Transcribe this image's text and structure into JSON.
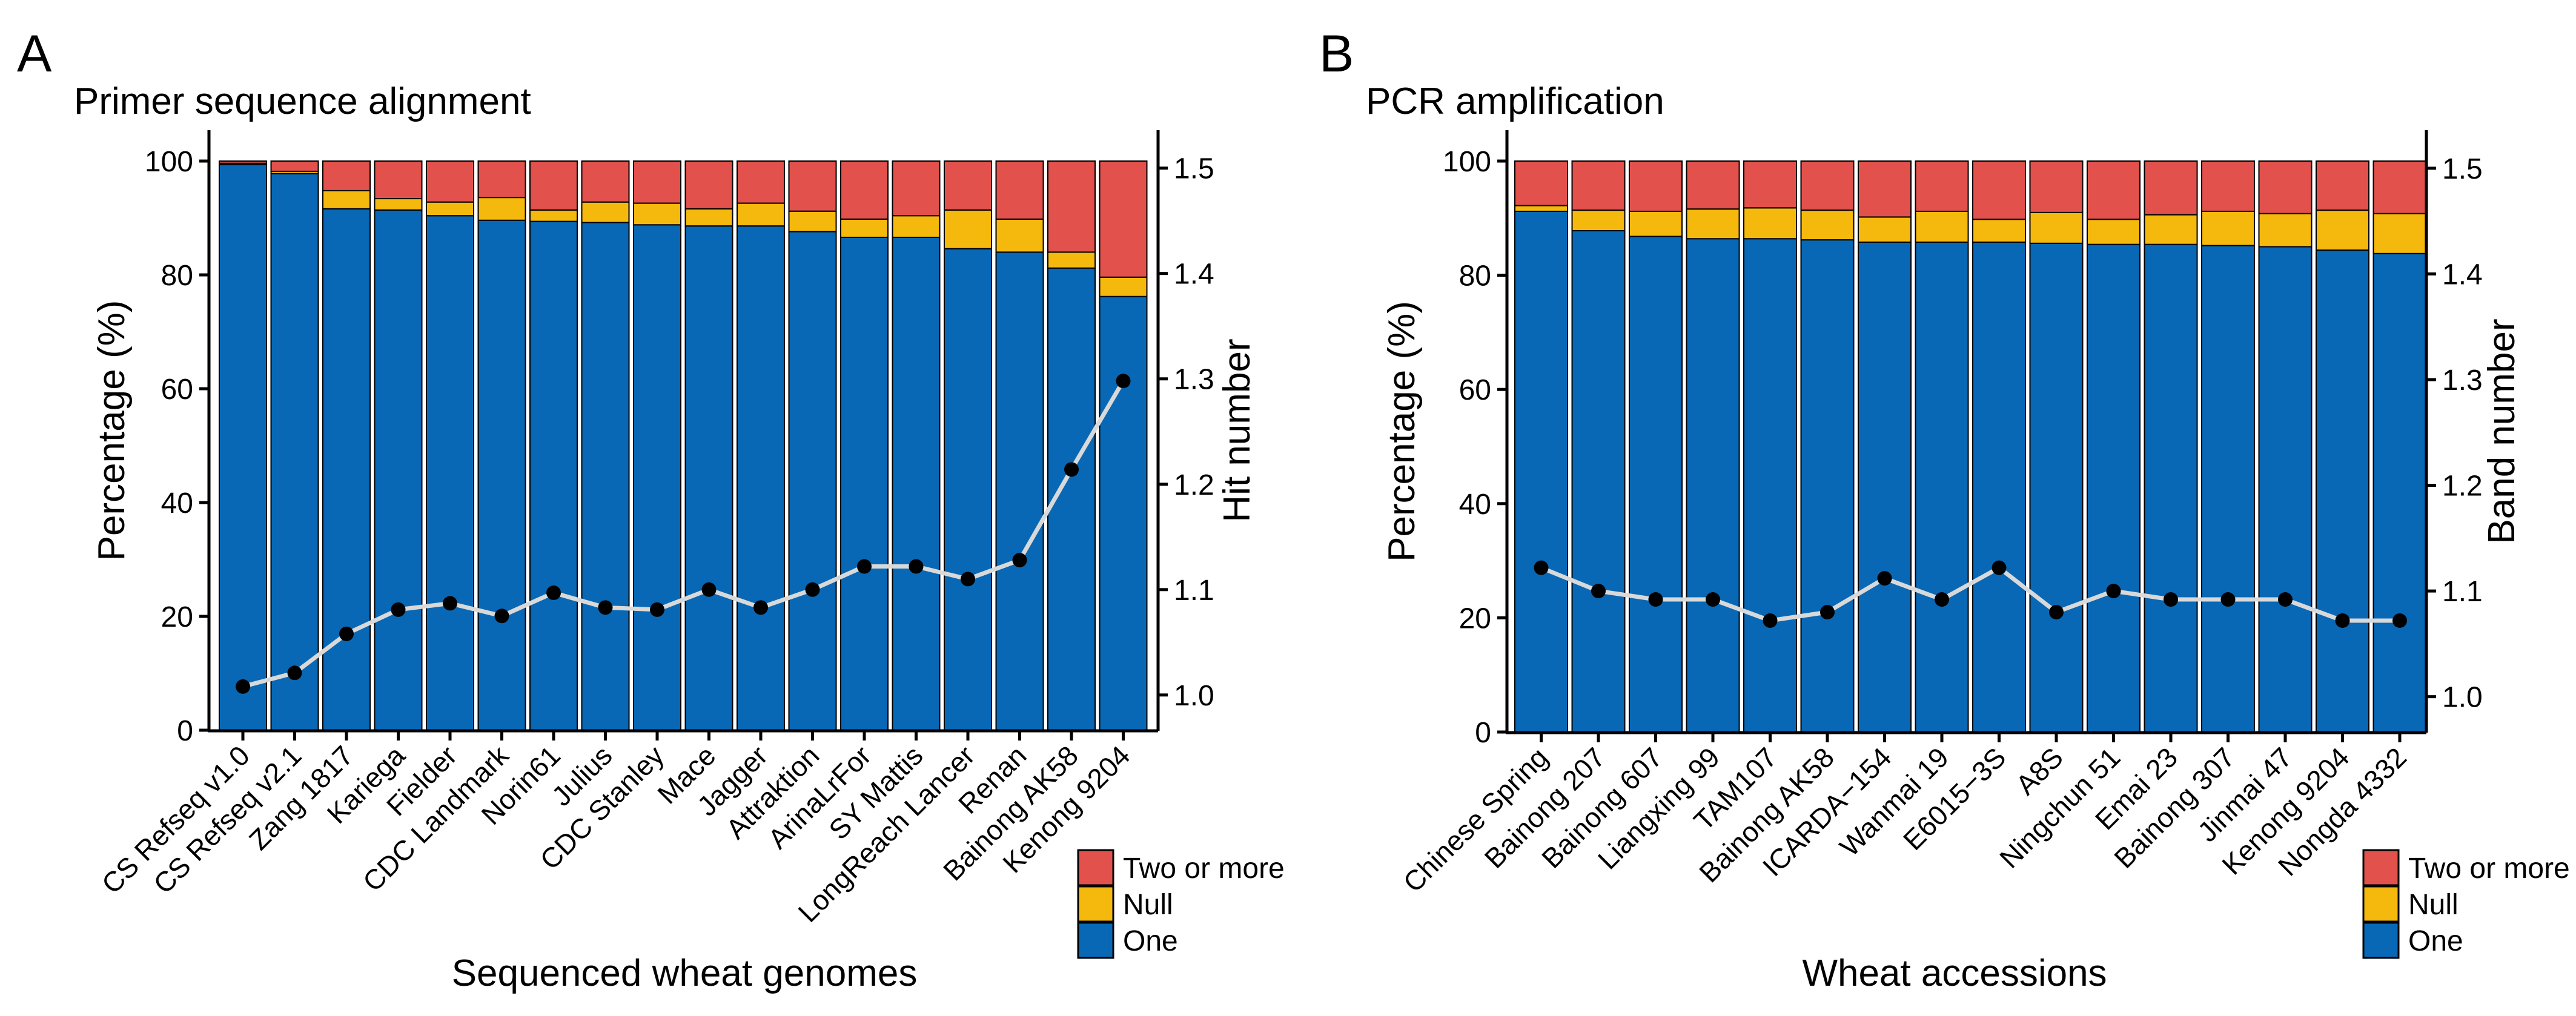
{
  "colors": {
    "one": "#0868b5",
    "null": "#f5b80c",
    "two": "#e2514b",
    "line": "#d9d9d9",
    "dot": "#000000"
  },
  "chart_data": [
    {
      "type": "bar",
      "panel": "A",
      "title": "Primer sequence alignment",
      "xlabel": "Sequenced wheat genomes",
      "ylabel": "Percentage (%)",
      "y2label": "Hit number",
      "ylim": [
        0,
        100
      ],
      "y2lim": [
        0.966,
        1.536
      ],
      "yticks": [
        "0",
        "20",
        "40",
        "60",
        "80",
        "100"
      ],
      "y2ticks": [
        "1.0",
        "1.1",
        "1.2",
        "1.3",
        "1.4",
        "1.5"
      ],
      "categories": [
        "CS Refseq v1.0",
        "CS Refseq v2.1",
        "Zang 1817",
        "Kariega",
        "Fielder",
        "CDC Landmark",
        "Norin61",
        "Julius",
        "CDC Stanley",
        "Mace",
        "Jagger",
        "Attraktion",
        "ArinaLrFor",
        "SY Mattis",
        "LongReach Lancer",
        "Renan",
        "Bainong AK58",
        "Kenong 9204"
      ],
      "series": [
        {
          "name": "One",
          "values": [
            99.4,
            97.8,
            91.6,
            91.4,
            90.4,
            89.6,
            89.4,
            89.2,
            88.8,
            88.6,
            88.6,
            87.6,
            86.6,
            86.6,
            84.6,
            84.0,
            81.2,
            76.2
          ]
        },
        {
          "name": "Null",
          "values": [
            0.2,
            0.4,
            3.2,
            2.0,
            2.4,
            4.0,
            2.0,
            3.6,
            3.8,
            3.0,
            4.0,
            3.6,
            3.2,
            3.8,
            6.8,
            5.8,
            2.8,
            3.4
          ]
        },
        {
          "name": "Two or more",
          "values": [
            0.4,
            1.8,
            5.2,
            6.6,
            7.2,
            6.4,
            8.6,
            7.2,
            7.4,
            8.4,
            7.4,
            8.8,
            10.2,
            9.6,
            8.6,
            10.2,
            16.0,
            20.4
          ]
        }
      ],
      "line": {
        "name": "Hit number",
        "values": [
          1.008,
          1.021,
          1.058,
          1.081,
          1.087,
          1.075,
          1.097,
          1.083,
          1.081,
          1.1,
          1.083,
          1.1,
          1.122,
          1.122,
          1.11,
          1.128,
          1.214,
          1.298
        ]
      },
      "legend": {
        "placement": "bottom-right",
        "entries": [
          "Two or more",
          "Null",
          "One"
        ]
      }
    },
    {
      "type": "bar",
      "panel": "B",
      "title": "PCR amplification",
      "xlabel": "Wheat accessions",
      "ylabel": "Percentage (%)",
      "y2label": "Band number",
      "ylim": [
        0,
        100
      ],
      "y2lim": [
        0.966,
        1.536
      ],
      "yticks": [
        "0",
        "20",
        "40",
        "60",
        "80",
        "100"
      ],
      "y2ticks": [
        "1.0",
        "1.1",
        "1.2",
        "1.3",
        "1.4",
        "1.5"
      ],
      "categories": [
        "Chinese Spring",
        "Bainong 207",
        "Bainong 607",
        "Liangxing 99",
        "TAM107",
        "Bainong AK58",
        "ICARDA−154",
        "Wanmai 19",
        "E6015−3S",
        "A8S",
        "Ningchun 51",
        "Emai 23",
        "Bainong 307",
        "Jinmai 47",
        "Kenong 9204",
        "Nongda 4332"
      ],
      "series": [
        {
          "name": "One",
          "values": [
            91.2,
            87.8,
            86.8,
            86.4,
            86.4,
            86.2,
            85.8,
            85.8,
            85.8,
            85.6,
            85.4,
            85.4,
            85.2,
            85.0,
            84.4,
            83.8
          ]
        },
        {
          "name": "Null",
          "values": [
            1.0,
            3.6,
            4.4,
            5.2,
            5.4,
            5.2,
            4.4,
            5.4,
            4.0,
            5.4,
            4.4,
            5.2,
            6.0,
            5.8,
            7.0,
            7.0
          ]
        },
        {
          "name": "Two or more",
          "values": [
            7.8,
            8.6,
            8.8,
            8.4,
            8.2,
            8.6,
            9.8,
            8.8,
            10.2,
            9.0,
            10.2,
            9.4,
            8.8,
            9.2,
            8.6,
            9.2
          ]
        }
      ],
      "line": {
        "name": "Band number",
        "values": [
          1.122,
          1.1,
          1.092,
          1.092,
          1.072,
          1.08,
          1.112,
          1.092,
          1.122,
          1.08,
          1.1,
          1.092,
          1.092,
          1.092,
          1.072,
          1.072
        ]
      },
      "legend": {
        "placement": "bottom-right",
        "entries": [
          "Two or more",
          "Null",
          "One"
        ]
      }
    }
  ]
}
